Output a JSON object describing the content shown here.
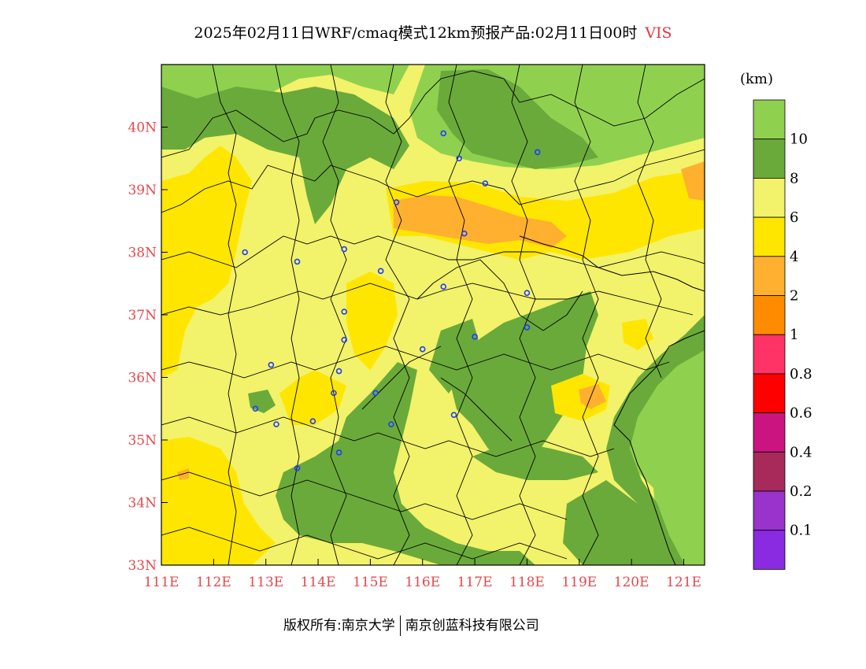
{
  "title": {
    "text": "2025年02月11日WRF/cmaq模式12km预报产品:02月11日00时",
    "variable": "VIS"
  },
  "colorbar": {
    "unit": "(km)",
    "levels": [
      {
        "label": "10",
        "color": "#8fd14f"
      },
      {
        "label": "8",
        "color": "#6aaa3a"
      },
      {
        "label": "6",
        "color": "#f2f26b"
      },
      {
        "label": "4",
        "color": "#ffe600"
      },
      {
        "label": "2",
        "color": "#ffb02e"
      },
      {
        "label": "1",
        "color": "#ff8c00"
      },
      {
        "label": "0.8",
        "color": "#ff3366"
      },
      {
        "label": "0.6",
        "color": "#ff0000"
      },
      {
        "label": "0.4",
        "color": "#cc1480"
      },
      {
        "label": "0.2",
        "color": "#a82a5a"
      },
      {
        "label": "0.1",
        "color": "#9933cc"
      },
      {
        "label": "",
        "color": "#8a2be2"
      }
    ]
  },
  "axes": {
    "lon_labels": [
      "111E",
      "112E",
      "113E",
      "114E",
      "115E",
      "116E",
      "117E",
      "118E",
      "119E",
      "120E",
      "121E"
    ],
    "lat_labels": [
      "33N",
      "34N",
      "35N",
      "36N",
      "37N",
      "38N",
      "39N",
      "40N"
    ]
  },
  "stations": [
    {
      "lon": 116.4,
      "lat": 39.9
    },
    {
      "lon": 116.7,
      "lat": 39.5
    },
    {
      "lon": 118.2,
      "lat": 39.6
    },
    {
      "lon": 117.2,
      "lat": 39.1
    },
    {
      "lon": 115.5,
      "lat": 38.8
    },
    {
      "lon": 116.8,
      "lat": 38.3
    },
    {
      "lon": 112.6,
      "lat": 38.0
    },
    {
      "lon": 113.6,
      "lat": 37.85
    },
    {
      "lon": 114.5,
      "lat": 38.05
    },
    {
      "lon": 115.2,
      "lat": 37.7
    },
    {
      "lon": 116.4,
      "lat": 37.45
    },
    {
      "lon": 118.0,
      "lat": 37.35
    },
    {
      "lon": 114.5,
      "lat": 37.05
    },
    {
      "lon": 114.5,
      "lat": 36.6
    },
    {
      "lon": 116.0,
      "lat": 36.45
    },
    {
      "lon": 117.0,
      "lat": 36.65
    },
    {
      "lon": 118.0,
      "lat": 36.8
    },
    {
      "lon": 113.1,
      "lat": 36.2
    },
    {
      "lon": 114.4,
      "lat": 36.1
    },
    {
      "lon": 114.3,
      "lat": 35.75
    },
    {
      "lon": 115.1,
      "lat": 35.75
    },
    {
      "lon": 112.8,
      "lat": 35.5
    },
    {
      "lon": 113.2,
      "lat": 35.25
    },
    {
      "lon": 113.9,
      "lat": 35.3
    },
    {
      "lon": 115.4,
      "lat": 35.25
    },
    {
      "lon": 116.6,
      "lat": 35.4
    },
    {
      "lon": 114.4,
      "lat": 34.8
    },
    {
      "lon": 113.6,
      "lat": 34.55
    }
  ],
  "footer": {
    "left": "版权所有:南京大学",
    "right": "南京创蓝科技有限公司"
  }
}
